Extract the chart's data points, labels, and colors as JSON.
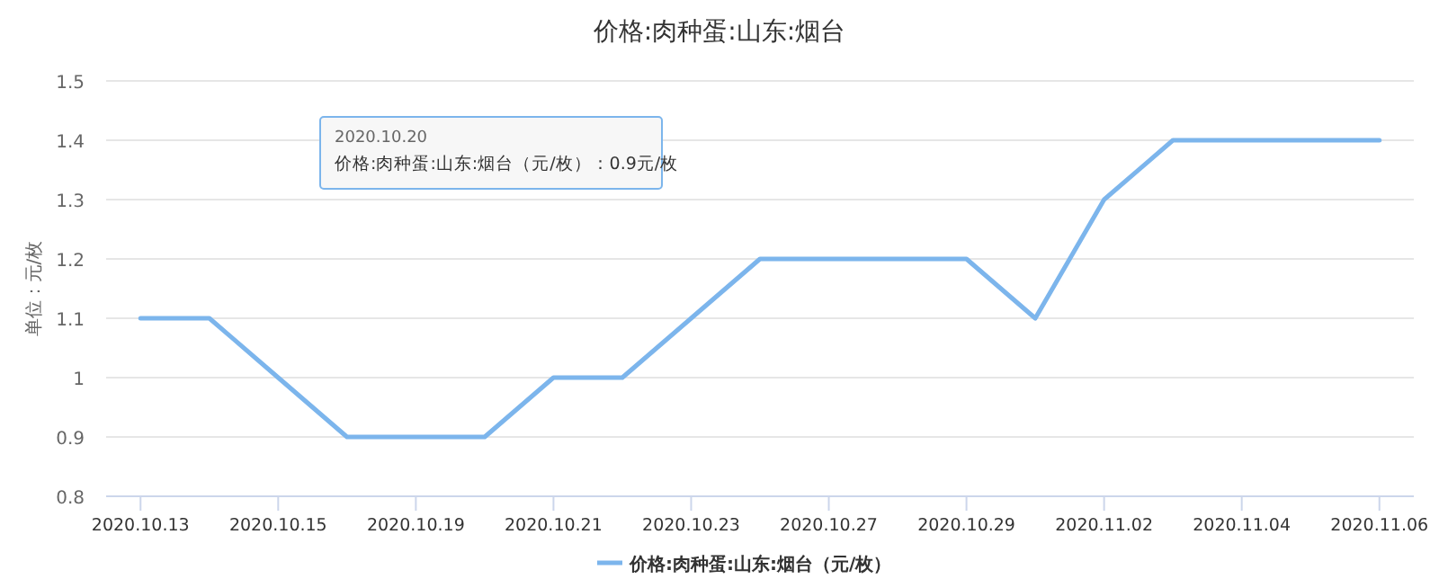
{
  "chart_data": {
    "type": "line",
    "title": "价格:肉种蛋:山东:烟台",
    "ylabel": "单位：元/枚",
    "categories": [
      "2020.10.13",
      null,
      "2020.10.15",
      null,
      "2020.10.19",
      null,
      "2020.10.21",
      null,
      "2020.10.23",
      null,
      "2020.10.27",
      null,
      "2020.10.29",
      null,
      "2020.11.02",
      null,
      "2020.11.04",
      null,
      "2020.11.06"
    ],
    "series": [
      {
        "name": "价格:肉种蛋:山东:烟台（元/枚）",
        "color": "#7cb5ec",
        "values": [
          1.1,
          1.1,
          1.0,
          0.9,
          0.9,
          0.9,
          1.0,
          1.0,
          1.1,
          1.2,
          1.2,
          1.2,
          1.2,
          1.1,
          1.3,
          1.4,
          1.4,
          1.4,
          1.4
        ]
      }
    ],
    "ylim": [
      0.8,
      1.5
    ],
    "yticks": [
      0.8,
      0.9,
      1,
      1.1,
      1.2,
      1.3,
      1.4,
      1.5
    ],
    "grid": "y",
    "legend": "bottom",
    "marker": "none",
    "line_style": "solid",
    "annotations": [
      "2020.10.20\n价格:肉种蛋:山东:烟台（元/枚）：0.9元/枚"
    ]
  }
}
